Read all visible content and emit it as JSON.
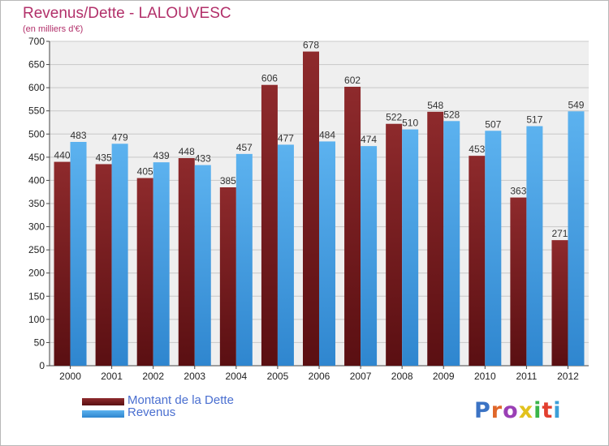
{
  "title": "Revenus/Dette - LALOUVESC",
  "subtitle": "(en milliers d'€)",
  "legend": [
    {
      "label": "Montant de la Dette",
      "color": "#7a1b1d"
    },
    {
      "label": "Revenus",
      "color": "#4aa3e6"
    }
  ],
  "logo": {
    "text": "Proxiti",
    "colors": [
      "#3b73c4",
      "#e0672a",
      "#9a3fb5",
      "#e2c21d",
      "#3bb54a",
      "#e23f2f",
      "#3b9fd8"
    ]
  },
  "colors": {
    "debt": "#7a1b1d",
    "revenue": "#4aa3e6",
    "grid": "#c8c8c8",
    "plot_bg": "#efefef",
    "title": "#b2306a"
  },
  "chart_data": {
    "type": "bar",
    "categories": [
      "2000",
      "2001",
      "2002",
      "2003",
      "2004",
      "2005",
      "2006",
      "2007",
      "2008",
      "2009",
      "2010",
      "2011",
      "2012"
    ],
    "series": [
      {
        "name": "Montant de la Dette",
        "values": [
          440,
          435,
          405,
          448,
          385,
          606,
          678,
          602,
          522,
          548,
          453,
          363,
          271
        ]
      },
      {
        "name": "Revenus",
        "values": [
          483,
          479,
          439,
          433,
          457,
          477,
          484,
          474,
          510,
          528,
          507,
          517,
          549
        ]
      }
    ],
    "title": "Revenus/Dette - LALOUVESC",
    "subtitle": "(en milliers d'€)",
    "ylim": [
      0,
      700
    ],
    "yticks": [
      0,
      50,
      100,
      150,
      200,
      250,
      300,
      350,
      400,
      450,
      500,
      550,
      600,
      650,
      700
    ],
    "grid": true,
    "legend_position": "bottom-left"
  }
}
